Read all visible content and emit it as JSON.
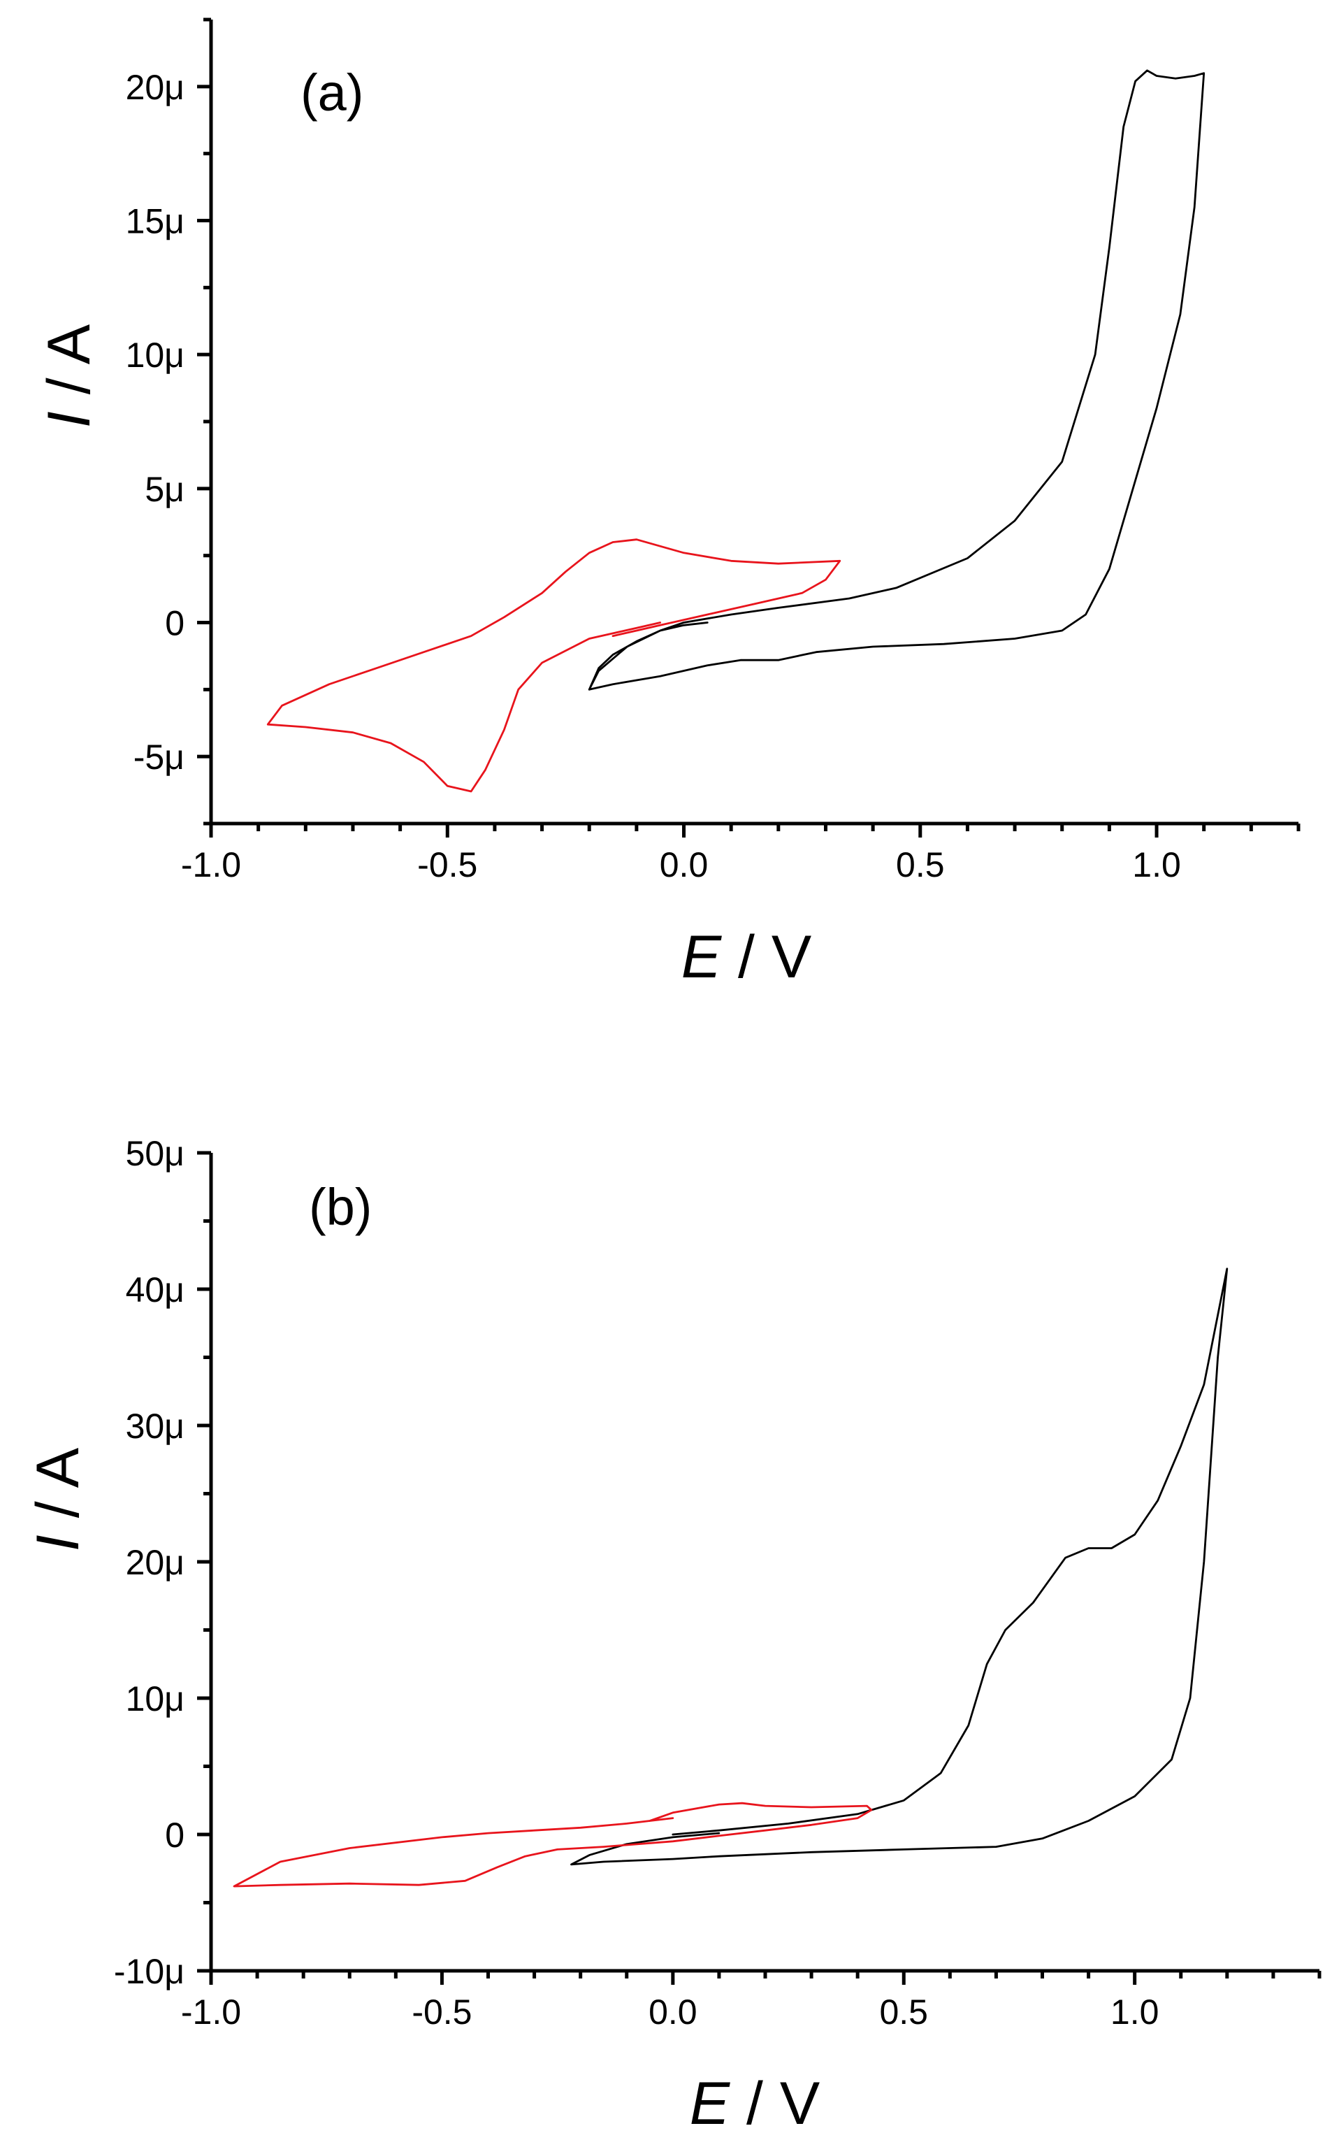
{
  "colors": {
    "series_black": "#000000",
    "series_red": "#e8141c",
    "axis": "#000000"
  },
  "chart_data": [
    {
      "type": "line",
      "panel": "(a)",
      "xlabel_italic": "E",
      "xlabel_unit": " / V",
      "ylabel_italic": "I",
      "ylabel_unit": " / A",
      "xlim": [
        -1.0,
        1.3
      ],
      "ylim": [
        -7.5,
        22.5
      ],
      "x_ticks": [
        {
          "value": -1.0,
          "label": "-1.0"
        },
        {
          "value": -0.5,
          "label": "-0.5"
        },
        {
          "value": 0.0,
          "label": "0.0"
        },
        {
          "value": 0.5,
          "label": "0.5"
        },
        {
          "value": 1.0,
          "label": "1.0"
        }
      ],
      "y_ticks": [
        {
          "value": -5,
          "label": "-5μ"
        },
        {
          "value": 0,
          "label": "0"
        },
        {
          "value": 5,
          "label": "5μ"
        },
        {
          "value": 10,
          "label": "10μ"
        },
        {
          "value": 15,
          "label": "15μ"
        },
        {
          "value": 20,
          "label": "20μ"
        }
      ],
      "series": [
        {
          "name": "black trace",
          "color": "#000000",
          "points": [
            [
              0.05,
              0.0
            ],
            [
              0.0,
              -0.1
            ],
            [
              -0.05,
              -0.3
            ],
            [
              -0.1,
              -0.7
            ],
            [
              -0.15,
              -1.2
            ],
            [
              -0.18,
              -1.7
            ],
            [
              -0.2,
              -2.5
            ],
            [
              -0.15,
              -2.3
            ],
            [
              -0.05,
              -2.0
            ],
            [
              0.05,
              -1.6
            ],
            [
              0.12,
              -1.4
            ],
            [
              0.2,
              -1.4
            ],
            [
              0.28,
              -1.1
            ],
            [
              0.4,
              -0.9
            ],
            [
              0.55,
              -0.8
            ],
            [
              0.7,
              -0.6
            ],
            [
              0.8,
              -0.3
            ],
            [
              0.85,
              0.3
            ],
            [
              0.9,
              2.0
            ],
            [
              0.95,
              5.0
            ],
            [
              1.0,
              8.0
            ],
            [
              1.05,
              11.5
            ],
            [
              1.08,
              15.5
            ],
            [
              1.1,
              20.5
            ],
            [
              1.08,
              20.4
            ],
            [
              1.04,
              20.3
            ],
            [
              1.0,
              20.4
            ],
            [
              0.98,
              20.6
            ],
            [
              0.955,
              20.2
            ],
            [
              0.93,
              18.5
            ],
            [
              0.9,
              14.0
            ],
            [
              0.87,
              10.0
            ],
            [
              0.8,
              6.0
            ],
            [
              0.7,
              3.8
            ],
            [
              0.6,
              2.4
            ],
            [
              0.45,
              1.3
            ],
            [
              0.35,
              0.9
            ],
            [
              0.2,
              0.55
            ],
            [
              0.1,
              0.3
            ],
            [
              0.0,
              0.0
            ],
            [
              -0.05,
              -0.3
            ],
            [
              -0.12,
              -0.9
            ],
            [
              -0.18,
              -1.8
            ],
            [
              -0.2,
              -2.5
            ]
          ]
        },
        {
          "name": "red trace",
          "color": "#e8141c",
          "points": [
            [
              -0.05,
              0.0
            ],
            [
              -0.1,
              -0.2
            ],
            [
              -0.2,
              -0.6
            ],
            [
              -0.3,
              -1.5
            ],
            [
              -0.35,
              -2.5
            ],
            [
              -0.38,
              -4.0
            ],
            [
              -0.42,
              -5.5
            ],
            [
              -0.45,
              -6.3
            ],
            [
              -0.5,
              -6.1
            ],
            [
              -0.55,
              -5.2
            ],
            [
              -0.62,
              -4.5
            ],
            [
              -0.7,
              -4.1
            ],
            [
              -0.8,
              -3.9
            ],
            [
              -0.88,
              -3.8
            ],
            [
              -0.85,
              -3.1
            ],
            [
              -0.75,
              -2.3
            ],
            [
              -0.65,
              -1.7
            ],
            [
              -0.55,
              -1.1
            ],
            [
              -0.45,
              -0.5
            ],
            [
              -0.38,
              0.2
            ],
            [
              -0.3,
              1.1
            ],
            [
              -0.25,
              1.9
            ],
            [
              -0.2,
              2.6
            ],
            [
              -0.15,
              3.0
            ],
            [
              -0.1,
              3.1
            ],
            [
              0.0,
              2.6
            ],
            [
              0.1,
              2.3
            ],
            [
              0.2,
              2.2
            ],
            [
              0.33,
              2.3
            ],
            [
              0.3,
              1.6
            ],
            [
              0.25,
              1.1
            ],
            [
              0.15,
              0.7
            ],
            [
              0.05,
              0.3
            ],
            [
              -0.05,
              -0.1
            ],
            [
              -0.1,
              -0.3
            ],
            [
              -0.15,
              -0.5
            ]
          ]
        }
      ]
    },
    {
      "type": "line",
      "panel": "(b)",
      "xlabel_italic": "E",
      "xlabel_unit": " / V",
      "ylabel_italic": "I",
      "ylabel_unit": " / A",
      "xlim": [
        -1.0,
        1.4
      ],
      "ylim": [
        -10,
        50
      ],
      "x_ticks": [
        {
          "value": -1.0,
          "label": "-1.0"
        },
        {
          "value": -0.5,
          "label": "-0.5"
        },
        {
          "value": 0.0,
          "label": "0.0"
        },
        {
          "value": 0.5,
          "label": "0.5"
        },
        {
          "value": 1.0,
          "label": "1.0"
        }
      ],
      "y_ticks": [
        {
          "value": -10,
          "label": "-10μ"
        },
        {
          "value": 0,
          "label": "0"
        },
        {
          "value": 10,
          "label": "10μ"
        },
        {
          "value": 20,
          "label": "20μ"
        },
        {
          "value": 30,
          "label": "30μ"
        },
        {
          "value": 40,
          "label": "40μ"
        },
        {
          "value": 50,
          "label": "50μ"
        }
      ],
      "series": [
        {
          "name": "black trace",
          "color": "#000000",
          "points": [
            [
              0.0,
              0.0
            ],
            [
              0.1,
              0.3
            ],
            [
              0.25,
              0.8
            ],
            [
              0.4,
              1.5
            ],
            [
              0.5,
              2.5
            ],
            [
              0.58,
              4.5
            ],
            [
              0.64,
              8.0
            ],
            [
              0.68,
              12.5
            ],
            [
              0.72,
              15.0
            ],
            [
              0.78,
              17.0
            ],
            [
              0.85,
              20.3
            ],
            [
              0.9,
              21.0
            ],
            [
              0.95,
              21.0
            ],
            [
              1.0,
              22.0
            ],
            [
              1.05,
              24.5
            ],
            [
              1.1,
              28.5
            ],
            [
              1.15,
              33.0
            ],
            [
              1.2,
              41.5
            ],
            [
              1.18,
              35.0
            ],
            [
              1.15,
              20.0
            ],
            [
              1.12,
              10.0
            ],
            [
              1.08,
              5.5
            ],
            [
              1.0,
              2.8
            ],
            [
              0.9,
              1.0
            ],
            [
              0.8,
              -0.3
            ],
            [
              0.7,
              -0.9
            ],
            [
              0.5,
              -1.1
            ],
            [
              0.3,
              -1.3
            ],
            [
              0.1,
              -1.6
            ],
            [
              0.0,
              -1.8
            ],
            [
              -0.15,
              -2.0
            ],
            [
              -0.22,
              -2.2
            ],
            [
              -0.18,
              -1.5
            ],
            [
              -0.1,
              -0.7
            ],
            [
              0.0,
              -0.2
            ],
            [
              0.1,
              0.1
            ]
          ]
        },
        {
          "name": "red trace",
          "color": "#e8141c",
          "points": [
            [
              0.0,
              1.2
            ],
            [
              -0.1,
              0.8
            ],
            [
              -0.2,
              0.5
            ],
            [
              -0.3,
              0.3
            ],
            [
              -0.4,
              0.1
            ],
            [
              -0.5,
              -0.2
            ],
            [
              -0.7,
              -1.0
            ],
            [
              -0.85,
              -2.0
            ],
            [
              -0.95,
              -3.8
            ],
            [
              -0.85,
              -3.7
            ],
            [
              -0.7,
              -3.6
            ],
            [
              -0.55,
              -3.7
            ],
            [
              -0.45,
              -3.4
            ],
            [
              -0.38,
              -2.4
            ],
            [
              -0.32,
              -1.6
            ],
            [
              -0.25,
              -1.1
            ],
            [
              -0.15,
              -0.9
            ],
            [
              0.0,
              -0.5
            ],
            [
              0.1,
              -0.1
            ],
            [
              0.2,
              0.3
            ],
            [
              0.3,
              0.7
            ],
            [
              0.4,
              1.2
            ],
            [
              0.43,
              1.8
            ],
            [
              0.42,
              2.1
            ],
            [
              0.3,
              2.0
            ],
            [
              0.2,
              2.1
            ],
            [
              0.15,
              2.3
            ],
            [
              0.1,
              2.2
            ],
            [
              0.0,
              1.6
            ],
            [
              -0.05,
              1.0
            ]
          ]
        }
      ]
    }
  ]
}
